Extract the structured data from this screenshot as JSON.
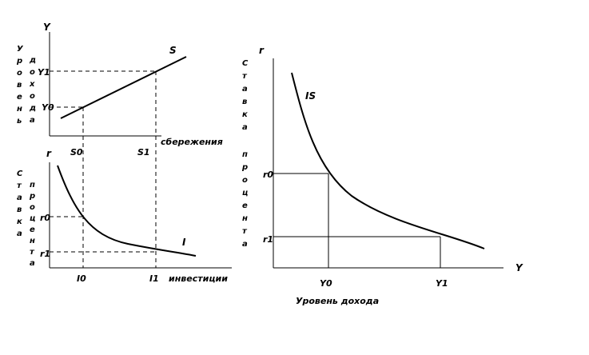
{
  "top_left": {
    "y_axis_symbol": "Y",
    "y_axis_title_col1": "Уровень",
    "y_axis_title_col2": "дохода",
    "line_label": "S",
    "y_ticks": [
      "Y0",
      "Y1"
    ],
    "x_ticks": [
      "S0",
      "S1"
    ],
    "x_axis_title": "сбережения"
  },
  "bottom_left": {
    "y_axis_symbol": "r",
    "y_axis_title_col1": "Ставка",
    "y_axis_title_col2": "процента",
    "curve_label": "I",
    "y_ticks": [
      "r0",
      "r1"
    ],
    "x_ticks": [
      "I0",
      "I1"
    ],
    "x_axis_title": "инвестиции"
  },
  "right": {
    "y_axis_symbol": "r",
    "y_axis_title_word1": "Ставка",
    "y_axis_title_word2": "процента",
    "curve_label": "IS",
    "y_ticks": [
      "r0",
      "r1"
    ],
    "x_ticks": [
      "Y0",
      "Y1"
    ],
    "x_axis_symbol": "Y",
    "x_axis_title": "Уровень дохода"
  }
}
